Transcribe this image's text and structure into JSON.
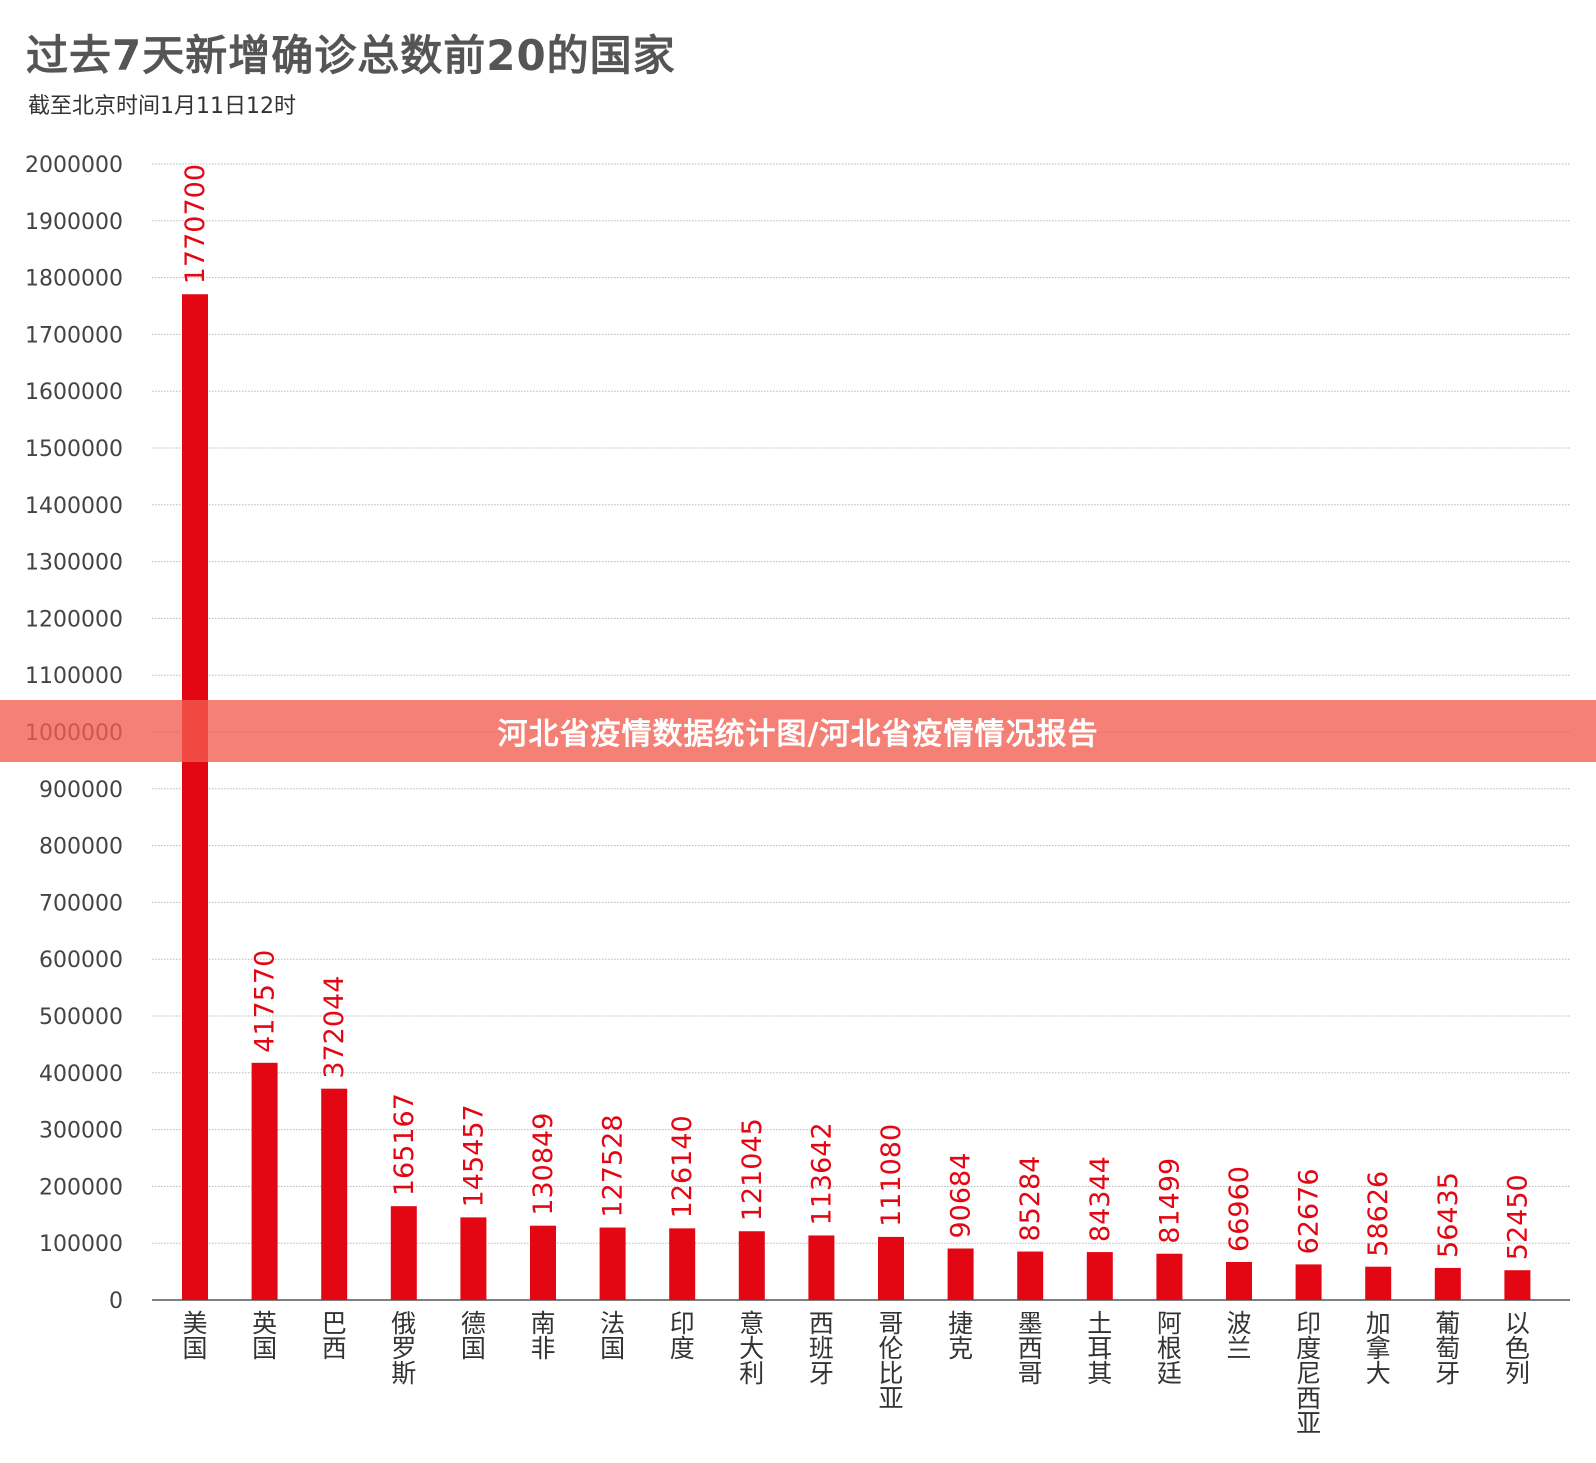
{
  "chart_data": {
    "type": "bar",
    "title": "过去7天新增确诊总数前20的国家",
    "subtitle": "截至北京时间1月11日12时",
    "ylim": [
      0,
      2000000
    ],
    "yticks": [
      0,
      100000,
      200000,
      300000,
      400000,
      500000,
      600000,
      700000,
      800000,
      900000,
      1000000,
      1100000,
      1200000,
      1300000,
      1400000,
      1500000,
      1600000,
      1700000,
      1800000,
      1900000,
      2000000
    ],
    "grid": true,
    "bar_color": "#e30613",
    "label_color": "#e30613",
    "categories": [
      "美国",
      "英国",
      "巴西",
      "俄罗斯",
      "德国",
      "南非",
      "法国",
      "印度",
      "意大利",
      "西班牙",
      "哥伦比亚",
      "捷克",
      "墨西哥",
      "土耳其",
      "阿根廷",
      "波兰",
      "印度尼西亚",
      "加拿大",
      "葡萄牙",
      "以色列"
    ],
    "values": [
      1770700,
      417570,
      372044,
      165167,
      145457,
      130849,
      127528,
      126140,
      121045,
      113642,
      111080,
      90684,
      85284,
      84344,
      81499,
      66960,
      62676,
      58626,
      56435,
      52450
    ]
  },
  "watermark": {
    "text": "河北省疫情数据统计图/河北省疫情情况报告",
    "color": "#f25c4e"
  }
}
